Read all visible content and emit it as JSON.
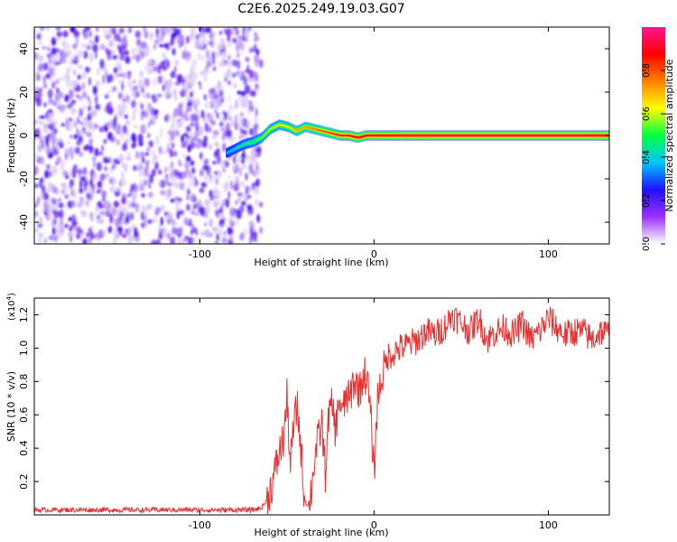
{
  "figure": {
    "title": "C2E6.2025.249.19.03.G07"
  },
  "colorbar": {
    "label": "Normalized spectral amplitude",
    "ticks": [
      0.0,
      0.2,
      0.4,
      0.6,
      0.8
    ],
    "tick_labels": [
      "0.0",
      "0.2",
      "0.4",
      "0.6",
      "0.8"
    ],
    "range": [
      0,
      1
    ],
    "stops": [
      "#ffffff",
      "#9b30ff",
      "#2010ff",
      "#00c8ff",
      "#00ff40",
      "#ffff00",
      "#ff8000",
      "#ff0000",
      "#ff1493"
    ]
  },
  "chart_data": [
    {
      "type": "heatmap",
      "title": "",
      "xlabel": "Height of straight line (km)",
      "ylabel": "Frequency (Hz)",
      "xlim": [
        -195,
        135
      ],
      "ylim": [
        -50,
        50
      ],
      "x_ticks": [
        -100,
        0,
        100
      ],
      "x_tick_labels": [
        "-100",
        "0",
        "100"
      ],
      "y_ticks": [
        -40,
        -20,
        0,
        20,
        40
      ],
      "y_tick_labels": [
        "-40",
        "-20",
        "0",
        "20",
        "40"
      ],
      "noise_region_x": [
        -195,
        -70
      ],
      "ridge": {
        "x": [
          -85,
          -80,
          -75,
          -70,
          -65,
          -60,
          -55,
          -50,
          -45,
          -40,
          -35,
          -30,
          -25,
          -20,
          -15,
          -10,
          -5,
          0,
          10,
          20,
          40,
          60,
          80,
          100,
          120,
          135
        ],
        "frequency": [
          -8,
          -6,
          -4,
          -3,
          -1,
          3,
          5,
          4,
          2,
          4,
          3,
          2,
          1,
          0,
          0,
          -1,
          0,
          0,
          0,
          0,
          0,
          0,
          0,
          0,
          0,
          0
        ],
        "amplitude": [
          0.35,
          0.4,
          0.45,
          0.5,
          0.55,
          0.6,
          0.62,
          0.65,
          0.7,
          0.72,
          0.75,
          0.8,
          0.82,
          0.85,
          0.86,
          0.88,
          0.9,
          0.9,
          0.92,
          0.95,
          0.95,
          0.95,
          0.95,
          0.95,
          0.95,
          0.95
        ]
      }
    },
    {
      "type": "line",
      "title": "",
      "xlabel": "Height of straight line (km)",
      "ylabel": "SNR (10 * v/v)",
      "y_multiplier": "(x10",
      "y_multiplier_exp": "4",
      "y_multiplier_close": ")",
      "xlim": [
        -195,
        135
      ],
      "ylim": [
        0,
        1.3
      ],
      "x_ticks": [
        -100,
        0,
        100
      ],
      "x_tick_labels": [
        "-100",
        "0",
        "100"
      ],
      "y_ticks": [
        0.2,
        0.4,
        0.6,
        0.8,
        1.0,
        1.2
      ],
      "y_tick_labels": [
        "0.2",
        "0.4",
        "0.6",
        "0.8",
        "1.0",
        "1.2"
      ],
      "color": "#e83030",
      "series": [
        {
          "name": "SNR",
          "x": [
            -195,
            -150,
            -100,
            -70,
            -65,
            -62,
            -58,
            -55,
            -52,
            -50,
            -48,
            -46,
            -44,
            -42,
            -40,
            -38,
            -36,
            -34,
            -32,
            -30,
            -28,
            -26,
            -24,
            -22,
            -20,
            -18,
            -16,
            -14,
            -12,
            -10,
            -8,
            -6,
            -4,
            -2,
            0,
            2,
            5,
            8,
            12,
            15,
            20,
            25,
            30,
            35,
            40,
            45,
            50,
            55,
            60,
            65,
            70,
            75,
            80,
            85,
            90,
            95,
            100,
            105,
            110,
            115,
            120,
            125,
            130,
            135
          ],
          "values": [
            0.03,
            0.03,
            0.03,
            0.03,
            0.04,
            0.08,
            0.2,
            0.35,
            0.45,
            0.7,
            0.3,
            0.55,
            0.65,
            0.4,
            0.1,
            0.05,
            0.15,
            0.35,
            0.45,
            0.55,
            0.25,
            0.6,
            0.65,
            0.5,
            0.7,
            0.6,
            0.72,
            0.68,
            0.8,
            0.78,
            0.75,
            0.85,
            0.82,
            0.6,
            0.25,
            0.7,
            0.85,
            0.95,
            0.98,
            1.0,
            1.02,
            1.05,
            1.1,
            1.08,
            1.12,
            1.2,
            1.15,
            1.1,
            1.18,
            1.05,
            1.1,
            1.12,
            1.08,
            1.15,
            1.05,
            1.1,
            1.18,
            1.12,
            1.08,
            1.1,
            1.1,
            1.05,
            1.1,
            1.08
          ]
        }
      ]
    }
  ]
}
